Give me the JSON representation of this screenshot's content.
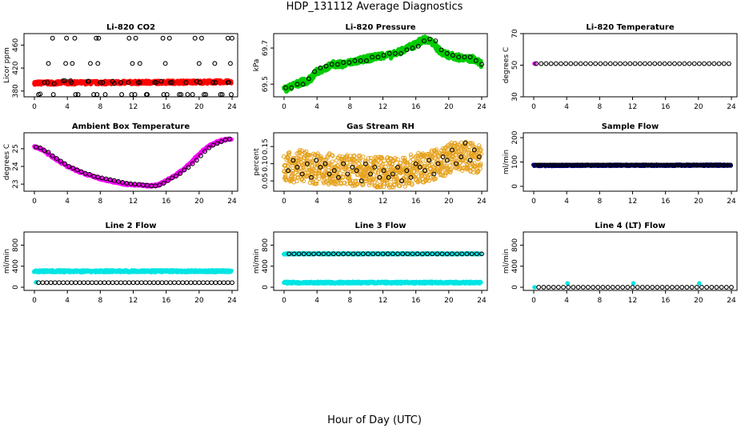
{
  "figure": {
    "title": "HDP_131112  Average Diagnostics",
    "xlabel": "Hour of Day (UTC)"
  },
  "chart_data": [
    {
      "id": "co2",
      "type": "scatter",
      "title": "Li-820 CO2",
      "ylabel": "Licor ppm",
      "xlim": [
        0,
        24
      ],
      "ylim": [
        370,
        480
      ],
      "yticks": [
        380,
        420,
        460
      ],
      "xticks": [
        0,
        4,
        8,
        12,
        16,
        20,
        24
      ],
      "series": [
        {
          "name": "co2-line",
          "color": "#ff0000",
          "style": "band",
          "x": [
            0,
            24
          ],
          "y": [
            394,
            396
          ],
          "spread": 3
        },
        {
          "name": "co2-avg",
          "color": "#000000",
          "style": "open",
          "x": [
            0.5,
            1.2,
            2.4,
            3.5,
            4.5,
            5.3,
            6.5,
            7.2,
            8.0,
            8.6,
            9.7,
            10.6,
            11.4,
            12.2,
            12.8,
            13.6,
            14.6,
            15.4,
            16.1,
            16.7,
            17.6,
            18.4,
            19.2,
            20.1,
            20.8,
            22.0,
            22.8,
            23.6,
            23.9,
            0.7,
            1.6,
            2.3,
            3.7,
            4.4,
            5.0,
            6.6,
            7.6,
            8.3,
            9.5,
            10.5,
            11.8,
            12.6,
            13.7,
            14.8,
            15.7,
            16.5,
            17.8,
            18.6,
            19.7,
            20.6,
            21.7,
            22.6,
            23.5,
            1.7,
            3.8,
            4.6,
            6.8,
            7.7,
            11.9,
            12.8,
            15.9,
            20.0,
            21.9,
            23.8,
            2.2,
            3.9,
            4.9,
            7.5,
            7.8,
            11.5,
            12.3,
            15.6,
            16.4,
            19.5,
            20.3,
            23.5,
            24.0
          ],
          "y": [
            374,
            395,
            393,
            398,
            395,
            374,
            397,
            374,
            395,
            374,
            393,
            374,
            395,
            374,
            395,
            374,
            395,
            397,
            374,
            395,
            374,
            395,
            374,
            395,
            374,
            395,
            374,
            395,
            374,
            375,
            395,
            374,
            398,
            398,
            374,
            397,
            374,
            395,
            397,
            395,
            374,
            395,
            374,
            395,
            374,
            395,
            374,
            374,
            397,
            374,
            395,
            374,
            395,
            428,
            428,
            428,
            428,
            428,
            428,
            428,
            428,
            428,
            428,
            428,
            472,
            472,
            472,
            472,
            472,
            472,
            472,
            472,
            472,
            472,
            472,
            472,
            472
          ]
        }
      ]
    },
    {
      "id": "pressure",
      "type": "scatter",
      "title": "Li-820 Pressure",
      "ylabel": "kPa",
      "xlim": [
        0,
        24
      ],
      "ylim": [
        69.43,
        69.78
      ],
      "yticks": [
        69.5,
        69.7
      ],
      "xticks": [
        0,
        4,
        8,
        12,
        16,
        20,
        24
      ],
      "series": [
        {
          "name": "pressure-band",
          "color": "#00cc00",
          "style": "band",
          "x": [
            0,
            1,
            2,
            3,
            4,
            5,
            6,
            7,
            8,
            9,
            10,
            11,
            12,
            13,
            14,
            15,
            16,
            17,
            18,
            19,
            20,
            21,
            22,
            23,
            24
          ],
          "y": [
            69.47,
            69.49,
            69.51,
            69.52,
            69.57,
            69.59,
            69.61,
            69.61,
            69.62,
            69.63,
            69.64,
            69.65,
            69.66,
            69.66,
            69.68,
            69.7,
            69.72,
            69.75,
            69.73,
            69.68,
            69.66,
            69.65,
            69.64,
            69.64,
            69.61
          ],
          "spread": 0.018
        },
        {
          "name": "pressure-avg",
          "color": "#000000",
          "style": "open",
          "x": [
            0.2,
            0.9,
            1.6,
            2.3,
            3.0,
            3.7,
            4.4,
            5.1,
            5.8,
            6.5,
            7.2,
            7.9,
            8.6,
            9.3,
            10.0,
            10.7,
            11.4,
            12.1,
            12.8,
            13.5,
            14.2,
            14.9,
            15.6,
            16.3,
            17.0,
            17.7,
            18.4,
            19.1,
            19.8,
            20.5,
            21.2,
            21.9,
            22.6,
            23.3,
            24.0
          ],
          "y": [
            69.48,
            69.48,
            69.5,
            69.5,
            69.53,
            69.57,
            69.59,
            69.6,
            69.61,
            69.61,
            69.62,
            69.62,
            69.63,
            69.63,
            69.63,
            69.65,
            69.65,
            69.66,
            69.67,
            69.67,
            69.67,
            69.69,
            69.7,
            69.71,
            69.74,
            69.75,
            69.74,
            69.69,
            69.67,
            69.66,
            69.65,
            69.65,
            69.65,
            69.63,
            69.61
          ]
        }
      ]
    },
    {
      "id": "temperature",
      "type": "scatter",
      "title": "Li-820 Temperature",
      "ylabel": "degrees C",
      "xlim": [
        0,
        24
      ],
      "ylim": [
        30,
        70
      ],
      "yticks": [
        30,
        50,
        70
      ],
      "xticks": [
        0,
        4,
        8,
        12,
        16,
        20,
        24
      ],
      "series": [
        {
          "name": "temp-start",
          "color": "#ff00ff",
          "style": "filled",
          "x": [
            0.1
          ],
          "y": [
            51
          ]
        },
        {
          "name": "temp-avg",
          "color": "#000000",
          "style": "open",
          "steps": [
            0.3,
            24,
            0.6
          ],
          "level": 51
        }
      ]
    },
    {
      "id": "ambient",
      "type": "scatter",
      "title": "Ambient Box Temperature",
      "ylabel": "degrees C",
      "xlim": [
        0,
        24
      ],
      "ylim": [
        22.6,
        25.9
      ],
      "yticks": [
        23.0,
        24.0,
        25.0
      ],
      "xticks": [
        0,
        4,
        8,
        12,
        16,
        20,
        24
      ],
      "series": [
        {
          "name": "ambient-band",
          "color": "#ff00ff",
          "style": "band",
          "x": [
            0,
            1,
            2,
            3,
            4,
            5,
            6,
            7,
            8,
            9,
            10,
            11,
            12,
            13,
            14,
            15,
            16,
            17,
            18,
            19,
            20,
            21,
            22,
            23,
            24
          ],
          "y": [
            25.1,
            24.95,
            24.6,
            24.3,
            24.0,
            23.8,
            23.6,
            23.45,
            23.3,
            23.2,
            23.1,
            23.0,
            22.95,
            22.95,
            22.9,
            22.95,
            23.2,
            23.45,
            23.8,
            24.2,
            24.7,
            25.1,
            25.35,
            25.5,
            25.55
          ],
          "spread": 0.05
        },
        {
          "name": "ambient-avg",
          "color": "#000000",
          "style": "open",
          "x": [
            0.2,
            0.7,
            1.2,
            1.7,
            2.2,
            2.7,
            3.2,
            3.7,
            4.2,
            4.7,
            5.2,
            5.7,
            6.2,
            6.7,
            7.2,
            7.7,
            8.2,
            8.7,
            9.2,
            9.7,
            10.2,
            10.7,
            11.2,
            11.7,
            12.2,
            12.7,
            13.2,
            13.7,
            14.2,
            14.7,
            15.2,
            15.7,
            16.2,
            16.7,
            17.2,
            17.7,
            18.2,
            18.7,
            19.2,
            19.7,
            20.2,
            20.7,
            21.2,
            21.7,
            22.2,
            22.7,
            23.2,
            23.7
          ],
          "y": [
            25.1,
            25.05,
            24.9,
            24.8,
            24.6,
            24.45,
            24.3,
            24.15,
            24.0,
            23.9,
            23.8,
            23.7,
            23.6,
            23.55,
            23.45,
            23.4,
            23.35,
            23.3,
            23.25,
            23.2,
            23.15,
            23.1,
            23.05,
            23.02,
            23.0,
            22.98,
            22.95,
            22.93,
            22.9,
            22.9,
            22.95,
            23.05,
            23.2,
            23.35,
            23.45,
            23.6,
            23.8,
            23.95,
            24.15,
            24.35,
            24.6,
            24.85,
            25.05,
            25.2,
            25.3,
            25.4,
            25.5,
            25.55
          ]
        }
      ]
    },
    {
      "id": "rh",
      "type": "scatter",
      "title": "Gas Stream RH",
      "ylabel": "percent",
      "xlim": [
        0,
        24
      ],
      "ylim": [
        0.02,
        0.19
      ],
      "yticks": [
        0.05,
        0.1,
        0.15
      ],
      "xticks": [
        0,
        4,
        8,
        12,
        16,
        20,
        24
      ],
      "series": [
        {
          "name": "rh-band",
          "color": "#e6a21e",
          "style": "scatterband",
          "x": [
            0,
            1,
            2,
            3,
            4,
            5,
            6,
            7,
            8,
            9,
            10,
            11,
            12,
            13,
            14,
            15,
            16,
            17,
            18,
            19,
            20,
            21,
            22,
            23,
            24
          ],
          "y": [
            0.09,
            0.09,
            0.095,
            0.09,
            0.085,
            0.085,
            0.085,
            0.085,
            0.08,
            0.08,
            0.08,
            0.075,
            0.075,
            0.075,
            0.075,
            0.08,
            0.085,
            0.09,
            0.095,
            0.1,
            0.115,
            0.12,
            0.12,
            0.115,
            0.11
          ],
          "spread": 0.045
        },
        {
          "name": "rh-avg",
          "color": "#000000",
          "style": "open",
          "x": [
            0.5,
            1.1,
            1.6,
            2.2,
            2.8,
            3.3,
            3.9,
            4.4,
            5.0,
            5.5,
            6.1,
            6.6,
            7.2,
            7.7,
            8.3,
            8.8,
            9.4,
            9.9,
            10.5,
            11.0,
            11.6,
            12.1,
            12.7,
            13.2,
            13.8,
            14.3,
            14.9,
            15.4,
            16.0,
            16.5,
            17.1,
            17.6,
            18.2,
            18.7,
            19.3,
            19.8,
            20.4,
            20.9,
            21.5,
            22.0,
            22.6,
            23.1,
            23.7
          ],
          "y": [
            0.08,
            0.11,
            0.09,
            0.07,
            0.1,
            0.06,
            0.11,
            0.09,
            0.1,
            0.07,
            0.08,
            0.06,
            0.1,
            0.07,
            0.09,
            0.08,
            0.05,
            0.1,
            0.07,
            0.09,
            0.06,
            0.08,
            0.06,
            0.07,
            0.09,
            0.05,
            0.08,
            0.06,
            0.1,
            0.09,
            0.08,
            0.11,
            0.07,
            0.1,
            0.12,
            0.11,
            0.14,
            0.1,
            0.12,
            0.16,
            0.11,
            0.14,
            0.12
          ]
        }
      ]
    },
    {
      "id": "sample-flow",
      "type": "scatter",
      "title": "Sample Flow",
      "ylabel": "ml/min",
      "xlim": [
        0,
        24
      ],
      "ylim": [
        -20,
        220
      ],
      "yticks": [
        0,
        100,
        200
      ],
      "xticks": [
        0,
        4,
        8,
        12,
        16,
        20,
        24
      ],
      "series": [
        {
          "name": "sample-band",
          "color": "#0000cc",
          "style": "band",
          "x": [
            0,
            24
          ],
          "y": [
            86,
            87
          ],
          "spread": 3
        },
        {
          "name": "sample-avg",
          "color": "#000000",
          "style": "open",
          "steps": [
            0.1,
            24,
            0.2
          ],
          "level": 87
        }
      ]
    },
    {
      "id": "line2",
      "type": "scatter",
      "title": "Line 2 Flow",
      "ylabel": "ml/min",
      "xlim": [
        0,
        24
      ],
      "ylim": [
        -60,
        1050
      ],
      "yticks": [
        0,
        400,
        800
      ],
      "xticks": [
        0,
        4,
        8,
        12,
        16,
        20,
        24
      ],
      "series": [
        {
          "name": "line2-band",
          "color": "#00e5e5",
          "style": "band",
          "x": [
            0,
            24
          ],
          "y": [
            305,
            305
          ],
          "spread": 20
        },
        {
          "name": "line2-cyan",
          "color": "#00e5e5",
          "style": "filled",
          "x": [
            0.2
          ],
          "y": [
            95
          ]
        },
        {
          "name": "line2-avg",
          "color": "#000000",
          "style": "open",
          "steps": [
            0.5,
            24,
            0.5
          ],
          "level": 88
        }
      ]
    },
    {
      "id": "line3",
      "type": "scatter",
      "title": "Line 3 Flow",
      "ylabel": "ml/min",
      "xlim": [
        0,
        24
      ],
      "ylim": [
        -60,
        1050
      ],
      "yticks": [
        0,
        400,
        800
      ],
      "xticks": [
        0,
        4,
        8,
        12,
        16,
        20,
        24
      ],
      "series": [
        {
          "name": "line3-band-low",
          "color": "#00e5e5",
          "style": "band",
          "x": [
            0,
            24
          ],
          "y": [
            88,
            88
          ],
          "spread": 18
        },
        {
          "name": "line3-band-high",
          "color": "#00e5e5",
          "style": "band",
          "x": [
            0,
            24
          ],
          "y": [
            635,
            635
          ],
          "spread": 12
        },
        {
          "name": "line3-avg",
          "color": "#000000",
          "style": "open",
          "steps": [
            0.6,
            24,
            0.6
          ],
          "level": 635
        }
      ]
    },
    {
      "id": "line4",
      "type": "scatter",
      "title": "Line 4 (LT) Flow",
      "ylabel": "ml/min",
      "xlim": [
        0,
        24
      ],
      "ylim": [
        -60,
        1050
      ],
      "yticks": [
        0,
        400,
        800
      ],
      "xticks": [
        0,
        4,
        8,
        12,
        16,
        20,
        24
      ],
      "series": [
        {
          "name": "line4-cyan",
          "color": "#00e5e5",
          "style": "filled",
          "x": [
            0.1,
            4.1,
            12.1,
            20.1
          ],
          "y": [
            0,
            75,
            75,
            75
          ]
        },
        {
          "name": "line4-avg",
          "color": "#000000",
          "style": "open",
          "steps": [
            0.6,
            24,
            0.6
          ],
          "level": 0
        }
      ]
    }
  ]
}
